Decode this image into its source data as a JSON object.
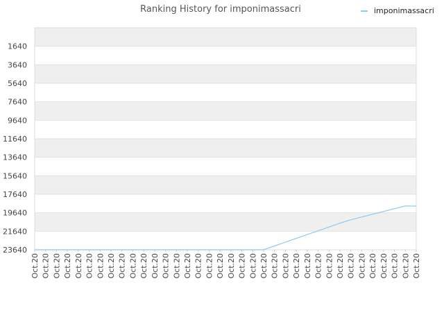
{
  "chart_data": {
    "type": "line",
    "title": "Ranking History for imponimassacri",
    "legend": {
      "position": "top-right",
      "entries": [
        "imponimassacri"
      ]
    },
    "xlabel": "",
    "ylabel": "",
    "y_inverted": true,
    "ylim": [
      -360,
      23640
    ],
    "y_ticks": [
      1640,
      3640,
      5640,
      7640,
      9640,
      11640,
      13640,
      15640,
      17640,
      19640,
      21640,
      23640
    ],
    "grid": true,
    "x": [
      "Oct.20",
      "Oct.20",
      "Oct.20",
      "Oct.20",
      "Oct.20",
      "Oct.20",
      "Oct.20",
      "Oct.20",
      "Oct.20",
      "Oct.20",
      "Oct.20",
      "Oct.20",
      "Oct.20",
      "Oct.20",
      "Oct.20",
      "Oct.20",
      "Oct.20",
      "Oct.20",
      "Oct.20",
      "Oct.20",
      "Oct.20",
      "Oct.20",
      "Oct.20",
      "Oct.20",
      "Oct.20",
      "Oct.20",
      "Oct.20",
      "Oct.20",
      "Oct.20",
      "Oct.20",
      "Oct.20",
      "Oct.20",
      "Oct.20",
      "Oct.20",
      "Oct.20",
      "Oct.20"
    ],
    "series": [
      {
        "name": "imponimassacri",
        "color": "#8ec8f0",
        "values": [
          23640,
          23640,
          23640,
          23640,
          23640,
          23640,
          23640,
          23640,
          23640,
          23640,
          23640,
          23640,
          23640,
          23640,
          23640,
          23640,
          23640,
          23640,
          23640,
          23640,
          23640,
          23640,
          23230,
          22820,
          22410,
          22000,
          21590,
          21180,
          20770,
          20400,
          20100,
          19800,
          19500,
          19200,
          18900,
          18920
        ]
      }
    ]
  }
}
